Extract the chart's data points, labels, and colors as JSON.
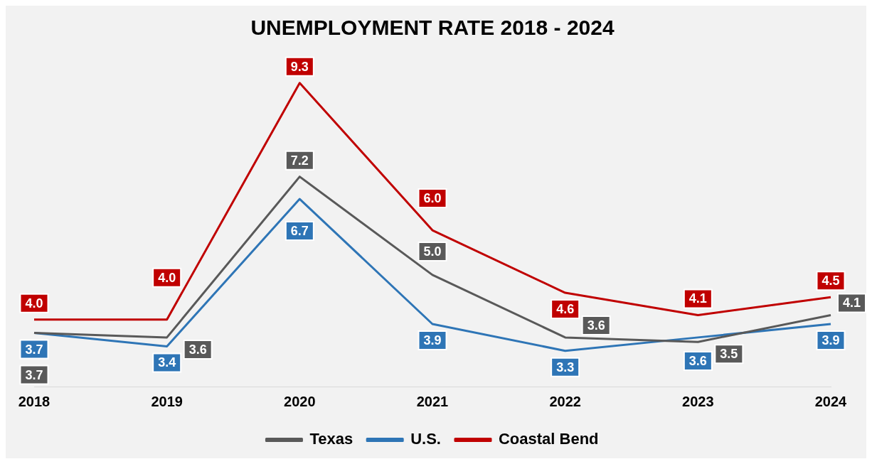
{
  "chart_data": {
    "type": "line",
    "title": "UNEMPLOYMENT RATE 2018 - 2024",
    "categories": [
      "2018",
      "2019",
      "2020",
      "2021",
      "2022",
      "2023",
      "2024"
    ],
    "series": [
      {
        "name": "Texas",
        "color": "#595959",
        "values": [
          3.7,
          3.6,
          7.2,
          5.0,
          3.6,
          3.5,
          4.1
        ],
        "value_labels": [
          "3.7",
          "3.6",
          "7.2",
          "5.0",
          "3.6",
          "3.5",
          "4.1"
        ]
      },
      {
        "name": "U.S.",
        "color": "#2e75b6",
        "values": [
          3.7,
          3.4,
          6.7,
          3.9,
          3.3,
          3.6,
          3.9
        ],
        "value_labels": [
          "3.7",
          "3.4",
          "6.7",
          "3.9",
          "3.3",
          "3.6",
          "3.9"
        ]
      },
      {
        "name": "Coastal Bend",
        "color": "#c00000",
        "values": [
          4.0,
          4.0,
          9.3,
          6.0,
          4.6,
          4.1,
          4.5
        ],
        "value_labels": [
          "4.0",
          "4.0",
          "9.3",
          "6.0",
          "4.6",
          "4.1",
          "4.5"
        ]
      }
    ],
    "legend": "bottom",
    "marker": "none",
    "line_style": "solid"
  }
}
